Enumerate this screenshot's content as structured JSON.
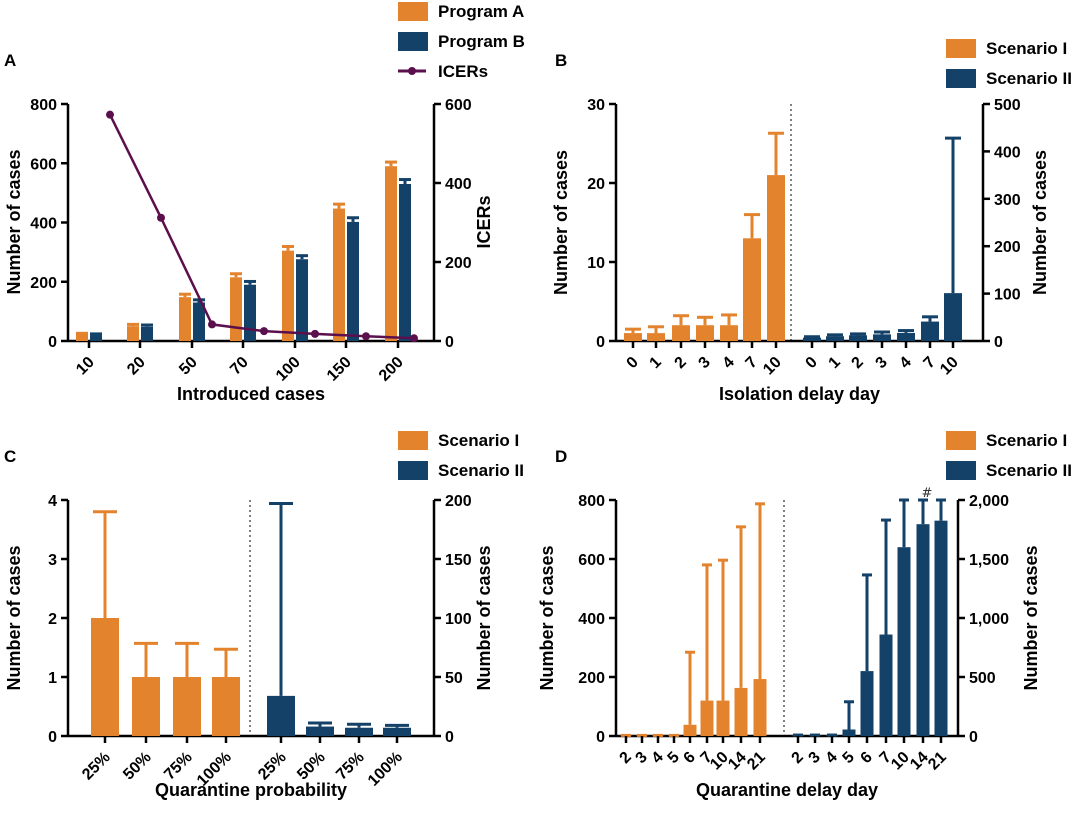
{
  "colors": {
    "orange": "#e4832d",
    "navy": "#134168",
    "purple": "#5b0f4d"
  },
  "chart_data": [
    {
      "panel": "A",
      "type": "bar",
      "title": "",
      "categories": [
        "10",
        "20",
        "50",
        "70",
        "100",
        "150",
        "200"
      ],
      "xlabel": "Introduced cases",
      "ylabel": "Number of cases",
      "ylim": [
        0,
        800
      ],
      "yticks": [
        "0",
        "200",
        "400",
        "600",
        "800"
      ],
      "y2label": "ICERs",
      "y2lim": [
        0,
        600
      ],
      "y2ticks": [
        "0",
        "200",
        "400",
        "600"
      ],
      "legend": [
        "Program A",
        "Program B",
        "ICERs"
      ],
      "series": [
        {
          "name": "Program A",
          "values": [
            22,
            50,
            148,
            215,
            305,
            447,
            590
          ],
          "err": [
            4,
            6,
            10,
            12,
            14,
            15,
            14
          ]
        },
        {
          "name": "Program B",
          "values": [
            20,
            48,
            130,
            190,
            276,
            402,
            530
          ],
          "err": [
            4,
            6,
            9,
            11,
            12,
            14,
            15
          ]
        },
        {
          "name": "ICERs",
          "type": "line",
          "axis": "right",
          "values": [
            573,
            312,
            42,
            25,
            18,
            12,
            7
          ]
        }
      ]
    },
    {
      "panel": "B",
      "type": "bar",
      "title": "",
      "xlabel": "Isolation delay day",
      "ylabel": "Number of cases",
      "y2label": "Number of cases",
      "legend": [
        "Scenario I",
        "Scenario II"
      ],
      "groups": [
        {
          "name": "Scenario I",
          "axis": "left",
          "categories": [
            "0",
            "1",
            "2",
            "3",
            "4",
            "7",
            "10"
          ],
          "values": [
            1,
            1,
            2,
            2,
            2,
            13,
            21
          ],
          "err": [
            0.5,
            0.8,
            1.2,
            1.0,
            1.3,
            3.0,
            5.3
          ]
        },
        {
          "name": "Scenario II",
          "axis": "right",
          "categories": [
            "0",
            "1",
            "2",
            "3",
            "4",
            "7",
            "10"
          ],
          "values": [
            7,
            10,
            12,
            14,
            17,
            41,
            101
          ],
          "err": [
            2,
            3,
            3,
            5,
            5,
            10,
            327
          ]
        }
      ],
      "ylim": [
        0,
        30
      ],
      "yticks": [
        "0",
        "10",
        "20",
        "30"
      ],
      "y2lim": [
        0,
        500
      ],
      "y2ticks": [
        "0",
        "100",
        "200",
        "300",
        "400",
        "500"
      ]
    },
    {
      "panel": "C",
      "type": "bar",
      "title": "",
      "xlabel": "Quarantine probability",
      "ylabel": "Number of cases",
      "y2label": "Number of cases",
      "legend": [
        "Scenario I",
        "Scenario II"
      ],
      "groups": [
        {
          "name": "Scenario I",
          "axis": "left",
          "categories": [
            "25%",
            "50%",
            "75%",
            "100%"
          ],
          "values": [
            2,
            1,
            1,
            1
          ],
          "err": [
            1.8,
            0.57,
            0.57,
            0.47
          ]
        },
        {
          "name": "Scenario II",
          "axis": "right",
          "categories": [
            "25%",
            "50%",
            "75%",
            "100%"
          ],
          "values": [
            34,
            8,
            7,
            7
          ],
          "err": [
            163,
            3,
            3,
            2
          ]
        }
      ],
      "ylim": [
        0,
        4
      ],
      "yticks": [
        "0",
        "1",
        "2",
        "3",
        "4"
      ],
      "y2lim": [
        0,
        200
      ],
      "y2ticks": [
        "0",
        "50",
        "100",
        "150",
        "200"
      ]
    },
    {
      "panel": "D",
      "type": "bar",
      "title": "",
      "xlabel": "Quarantine delay day",
      "ylabel": "Number of cases",
      "y2label": "Number of cases",
      "legend": [
        "Scenario I",
        "Scenario II"
      ],
      "annotation": "#",
      "groups": [
        {
          "name": "Scenario I",
          "axis": "left",
          "categories": [
            "2",
            "3",
            "4",
            "5",
            "6",
            "7",
            "10",
            "14",
            "21"
          ],
          "values": [
            1,
            1,
            1,
            1,
            38,
            120,
            120,
            163,
            193
          ],
          "err": [
            1,
            1,
            1,
            1,
            246,
            460,
            476,
            546,
            594
          ]
        },
        {
          "name": "Scenario II",
          "axis": "right",
          "categories": [
            "2",
            "3",
            "4",
            "5",
            "6",
            "7",
            "10",
            "14",
            "21"
          ],
          "values": [
            5,
            5,
            5,
            55,
            550,
            860,
            1600,
            1795,
            1825
          ],
          "err": [
            3,
            3,
            3,
            235,
            815,
            970,
            400,
            205,
            175
          ]
        }
      ],
      "ylim": [
        0,
        800
      ],
      "yticks": [
        "0",
        "200",
        "400",
        "600",
        "800"
      ],
      "y2lim": [
        0,
        2000
      ],
      "y2ticks": [
        "0",
        "500",
        "1,000",
        "1,500",
        "2,000"
      ]
    }
  ]
}
